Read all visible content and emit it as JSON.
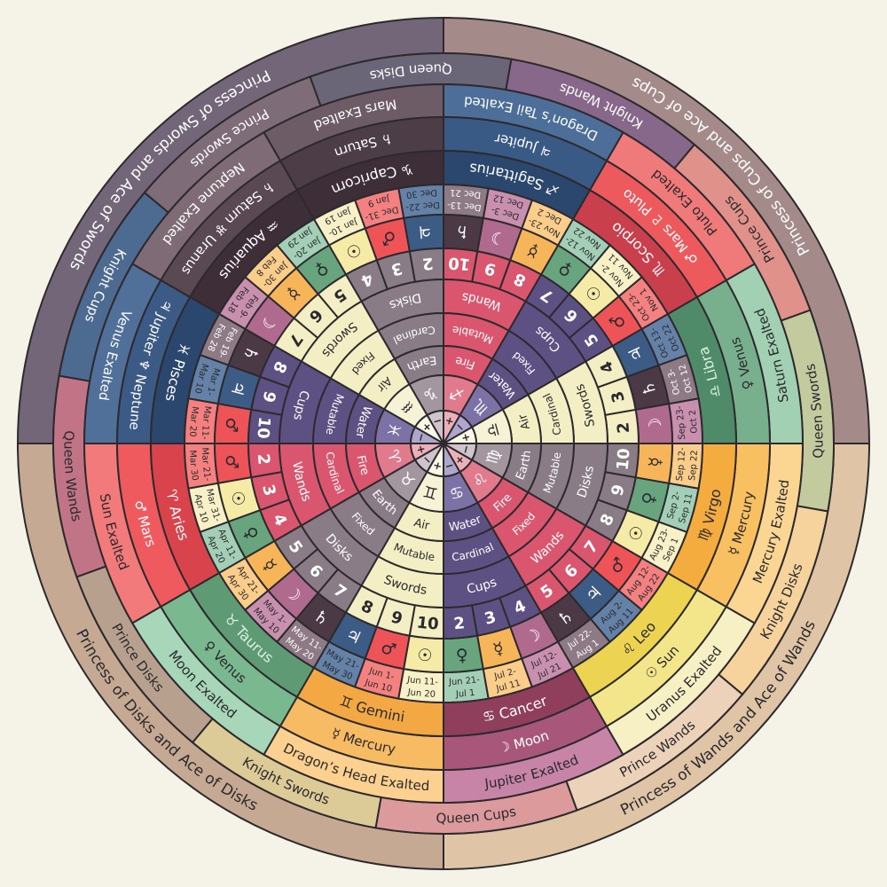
{
  "elements": {
    "Fire": {
      "color": "#d9566e",
      "inner": "#e07a8c",
      "center": "#eeb0b8",
      "text": "#ffffff",
      "polarity": "+"
    },
    "Earth": {
      "color": "#8a7c86",
      "inner": "#a3969f",
      "center": "#cfc4cc",
      "text": "#ffffff",
      "polarity": "−"
    },
    "Air": {
      "color": "#f3eec4",
      "inner": "#f6f2d6",
      "center": "#fbf8e8",
      "text": "#2a2a2e",
      "polarity": "+"
    },
    "Water": {
      "color": "#5d5183",
      "inner": "#7d72a6",
      "center": "#aea6cc",
      "text": "#ffffff",
      "polarity": "−"
    }
  },
  "planets": {
    "Mars": {
      "glyph": "♂",
      "color": "#ee5457",
      "light": "#f48080",
      "text": "#2a2a2e"
    },
    "Sun": {
      "glyph": "☉",
      "color": "#f6eba6",
      "light": "#f8f1c8",
      "text": "#2a2a2e"
    },
    "Venus": {
      "glyph": "♀",
      "color": "#68a57f",
      "light": "#a3cfb6",
      "text": "#2a2a2e"
    },
    "Mercury": {
      "glyph": "☿",
      "color": "#f7b55a",
      "light": "#fbcd8a",
      "text": "#2a2a2e"
    },
    "Moon": {
      "glyph": "☽",
      "color": "#b06a8e",
      "light": "#c98fae",
      "text": "#ffffff"
    },
    "Saturn": {
      "glyph": "♄",
      "color": "#4b3a45",
      "light": "#8d7a84",
      "text": "#ffffff"
    },
    "Jupiter": {
      "glyph": "♃",
      "color": "#3d5c85",
      "light": "#6482a8",
      "text": "#ffffff"
    }
  },
  "signs": [
    {
      "name": "♈ Aries",
      "glyph": "♈",
      "ruler": "♂ Mars",
      "exalted": "Sun Exalted",
      "element": "Fire",
      "modality": "Cardinal",
      "suit": "Wands",
      "numbers": [
        "2",
        "3",
        "4"
      ],
      "decans": [
        {
          "planet": "Mars",
          "dates": [
            "Mar 21-",
            "Mar 30"
          ]
        },
        {
          "planet": "Sun",
          "dates": [
            "Mar 31-",
            "Apr 10"
          ]
        },
        {
          "planet": "Venus",
          "dates": [
            "Apr 11-",
            "Apr 20"
          ]
        }
      ],
      "colors": [
        "#d9434c",
        "#ef5a5e",
        "#f27a7a"
      ],
      "text": [
        "#ffffff",
        "#ffffff",
        "#2a2a2e"
      ]
    },
    {
      "name": "♉ Taurus",
      "glyph": "♉",
      "ruler": "♀ Venus",
      "exalted": "Moon Exalted",
      "element": "Earth",
      "modality": "Fixed",
      "suit": "Disks",
      "numbers": [
        "5",
        "6",
        "7"
      ],
      "decans": [
        {
          "planet": "Mercury",
          "dates": [
            "Apr 21-",
            "Apr 30"
          ]
        },
        {
          "planet": "Moon",
          "dates": [
            "May 1-",
            "May 10"
          ]
        },
        {
          "planet": "Saturn",
          "dates": [
            "May 11-",
            "May 20"
          ]
        }
      ],
      "colors": [
        "#5e9a74",
        "#7ab88f",
        "#a7d6b9"
      ],
      "text": [
        "#d8f2e2",
        "#2a2a2e",
        "#2a2a2e"
      ]
    },
    {
      "name": "♊ Gemini",
      "glyph": "♊",
      "ruler": "☿ Mercury",
      "exalted": "Dragon’s Head Exalted",
      "element": "Air",
      "modality": "Mutable",
      "suit": "Swords",
      "numbers": [
        "8",
        "9",
        "10"
      ],
      "decans": [
        {
          "planet": "Jupiter",
          "dates": [
            "May 21-",
            "May 30"
          ]
        },
        {
          "planet": "Mars",
          "dates": [
            "Jun 1-",
            "Jun 10"
          ]
        },
        {
          "planet": "Sun",
          "dates": [
            "Jun 11-",
            "Jun 20"
          ]
        }
      ],
      "colors": [
        "#f3a844",
        "#f7bb63",
        "#fcd08e"
      ],
      "text": [
        "#2a2a2e",
        "#2a2a2e",
        "#2a2a2e"
      ]
    },
    {
      "name": "♋ Cancer",
      "glyph": "♋",
      "ruler": "☽ Moon",
      "exalted": "Jupiter Exalted",
      "element": "Water",
      "modality": "Cardinal",
      "suit": "Cups",
      "numbers": [
        "2",
        "3",
        "4"
      ],
      "decans": [
        {
          "planet": "Venus",
          "dates": [
            "Jun 21-",
            "Jul 1"
          ]
        },
        {
          "planet": "Mercury",
          "dates": [
            "Jul 2-",
            "Jul 11"
          ]
        },
        {
          "planet": "Moon",
          "dates": [
            "Jul 12-",
            "Jul 21"
          ]
        }
      ],
      "colors": [
        "#8f3f5c",
        "#a8577a",
        "#c884a6"
      ],
      "text": [
        "#ffffff",
        "#ffffff",
        "#2a2a2e"
      ]
    },
    {
      "name": "♌ Leo",
      "glyph": "♌",
      "ruler": "☉ Sun",
      "exalted": "Uranus Exalted",
      "element": "Fire",
      "modality": "Fixed",
      "suit": "Wands",
      "numbers": [
        "5",
        "6",
        "7"
      ],
      "decans": [
        {
          "planet": "Saturn",
          "dates": [
            "Jul 22-",
            "Aug 1"
          ]
        },
        {
          "planet": "Jupiter",
          "dates": [
            "Aug 2-",
            "Aug 11"
          ]
        },
        {
          "planet": "Mars",
          "dates": [
            "Aug 12-",
            "Aug 22"
          ]
        }
      ],
      "colors": [
        "#ecd452",
        "#f3e68a",
        "#f7f0c4"
      ],
      "text": [
        "#2a2a2e",
        "#2a2a2e",
        "#2a2a2e"
      ]
    },
    {
      "name": "♍ Virgo",
      "glyph": "♍",
      "ruler": "☿ Mercury",
      "exalted": "Mercury Exalted",
      "element": "Earth",
      "modality": "Mutable",
      "suit": "Disks",
      "numbers": [
        "8",
        "9",
        "10"
      ],
      "decans": [
        {
          "planet": "Sun",
          "dates": [
            "Aug 23-",
            "Sep 1"
          ]
        },
        {
          "planet": "Venus",
          "dates": [
            "Sep 2-",
            "Sep 11"
          ]
        },
        {
          "planet": "Mercury",
          "dates": [
            "Sep 12-",
            "Sep 22"
          ]
        }
      ],
      "colors": [
        "#f5ac3e",
        "#f8c060",
        "#fbd592"
      ],
      "text": [
        "#2a2a2e",
        "#2a2a2e",
        "#2a2a2e"
      ]
    },
    {
      "name": "♎ Libra",
      "glyph": "♎",
      "ruler": "♀ Venus",
      "exalted": "Saturn Exalted",
      "element": "Air",
      "modality": "Cardinal",
      "suit": "Swords",
      "numbers": [
        "2",
        "3",
        "4"
      ],
      "decans": [
        {
          "planet": "Moon",
          "dates": [
            "Sep 23-",
            "Oct 2"
          ]
        },
        {
          "planet": "Saturn",
          "dates": [
            "Oct 3-",
            "Oct 12"
          ]
        },
        {
          "planet": "Jupiter",
          "dates": [
            "Oct 13-",
            "Oct 22"
          ]
        }
      ],
      "colors": [
        "#4f8b68",
        "#78b08e",
        "#a2d0b3"
      ],
      "text": [
        "#d8f2e2",
        "#2a2a2e",
        "#2a2a2e"
      ]
    },
    {
      "name": "♏ Scorpio",
      "glyph": "♏",
      "ruler": "♂ Mars ♇ Pluto",
      "exalted": "Pluto Exalted",
      "element": "Water",
      "modality": "Fixed",
      "suit": "Cups",
      "numbers": [
        "5",
        "6",
        "7"
      ],
      "decans": [
        {
          "planet": "Mars",
          "dates": [
            "Oct 23-",
            "Nov 1"
          ]
        },
        {
          "planet": "Sun",
          "dates": [
            "Nov 2-",
            "Nov 11"
          ]
        },
        {
          "planet": "Venus",
          "dates": [
            "Nov 12-",
            "Nov 22"
          ]
        }
      ],
      "colors": [
        "#c9404c",
        "#ec5a5e",
        "#f07a7a"
      ],
      "text": [
        "#ffffff",
        "#ffffff",
        "#2a2a2e"
      ]
    },
    {
      "name": "♐ Sagittarius",
      "glyph": "♐",
      "ruler": "♃ Jupiter",
      "exalted": "Dragon’s Tail Exalted",
      "element": "Fire",
      "modality": "Mutable",
      "suit": "Wands",
      "numbers": [
        "8",
        "9",
        "10"
      ],
      "decans": [
        {
          "planet": "Mercury",
          "dates": [
            "Nov 23-",
            "Dec 2"
          ]
        },
        {
          "planet": "Moon",
          "dates": [
            "Dec 3-",
            "Dec 12"
          ]
        },
        {
          "planet": "Saturn",
          "dates": [
            "Dec 13-",
            "Dec 21"
          ]
        }
      ],
      "colors": [
        "#2c476e",
        "#3a5a86",
        "#4d6e98"
      ],
      "text": [
        "#ffffff",
        "#ffffff",
        "#ffffff"
      ]
    },
    {
      "name": "♑ Capricorn",
      "glyph": "♑",
      "ruler": "♄ Saturn",
      "exalted": "Mars Exalted",
      "element": "Earth",
      "modality": "Cardinal",
      "suit": "Disks",
      "numbers": [
        "2",
        "3",
        "4"
      ],
      "decans": [
        {
          "planet": "Jupiter",
          "dates": [
            "Dec 22-",
            "Dec 30"
          ]
        },
        {
          "planet": "Mars",
          "dates": [
            "Dec 31-",
            "Jan 9"
          ]
        },
        {
          "planet": "Sun",
          "dates": [
            "Jan 10-",
            "Jan 19"
          ]
        }
      ],
      "colors": [
        "#3e2e38",
        "#4d3d47",
        "#6d5c66"
      ],
      "text": [
        "#ffffff",
        "#ffffff",
        "#ffffff"
      ]
    },
    {
      "name": "♒ Aquarius",
      "glyph": "♒",
      "ruler": "♄ Saturn ♅ Uranus",
      "exalted": "Neptune Exalted",
      "element": "Air",
      "modality": "Fixed",
      "suit": "Swords",
      "numbers": [
        "5",
        "6",
        "7"
      ],
      "decans": [
        {
          "planet": "Venus",
          "dates": [
            "Jan 20-",
            "Jan 29"
          ]
        },
        {
          "planet": "Mercury",
          "dates": [
            "Jan 30-",
            "Feb 8"
          ]
        },
        {
          "planet": "Moon",
          "dates": [
            "Feb 9-",
            "Feb 18"
          ]
        }
      ],
      "colors": [
        "#3e2e38",
        "#5a4852",
        "#7e6b75"
      ],
      "text": [
        "#ffffff",
        "#ffffff",
        "#ffffff"
      ]
    },
    {
      "name": "♓ Pisces",
      "glyph": "♓",
      "ruler": "♃ Jupiter ♆ Neptune",
      "exalted": "Venus Exalted",
      "element": "Water",
      "modality": "Mutable",
      "suit": "Cups",
      "numbers": [
        "8",
        "9",
        "10"
      ],
      "decans": [
        {
          "planet": "Saturn",
          "dates": [
            "Feb 19-",
            "Feb 28"
          ]
        },
        {
          "planet": "Jupiter",
          "dates": [
            "Mar 1-",
            "Mar 10"
          ]
        },
        {
          "planet": "Mars",
          "dates": [
            "Mar 11-",
            "Mar 20"
          ]
        }
      ],
      "colors": [
        "#2c476e",
        "#3b5a86",
        "#50709a"
      ],
      "text": [
        "#ffffff",
        "#ffffff",
        "#ffffff"
      ]
    }
  ],
  "courts": [
    {
      "label": "Queen Wands",
      "color": "#c07485",
      "text": "#2a2a2e"
    },
    {
      "label": "Prince Disks",
      "color": "#b8a08f",
      "text": "#2a2a2e"
    },
    {
      "label": "Knight Swords",
      "color": "#dccb96",
      "text": "#2a2a2e"
    },
    {
      "label": "Queen Cups",
      "color": "#dc9a9c",
      "text": "#2a2a2e"
    },
    {
      "label": "Prince Wands",
      "color": "#ecd2b8",
      "text": "#2a2a2e"
    },
    {
      "label": "Knight Disks",
      "color": "#f6d39c",
      "text": "#2a2a2e"
    },
    {
      "label": "Queen Swords",
      "color": "#c3cb9e",
      "text": "#2a2a2e"
    },
    {
      "label": "Prince Cups",
      "color": "#e0918a",
      "text": "#2a2a2e"
    },
    {
      "label": "Knight Wands",
      "color": "#87688a",
      "text": "#ffffff"
    },
    {
      "label": "Queen Disks",
      "color": "#6b6578",
      "text": "#ffffff"
    },
    {
      "label": "Prince Swords",
      "color": "#7e6c78",
      "text": "#ffffff"
    },
    {
      "label": "Knight Cups",
      "color": "#4d6a90",
      "text": "#ffffff"
    }
  ],
  "princesses": [
    {
      "label": "Princess of Disks and Ace of Disks",
      "color": "#c5a992",
      "text": "#2a2a2e"
    },
    {
      "label": "Princess of Wands and Ace of Wands",
      "color": "#e0c4a6",
      "text": "#2a2a2e"
    },
    {
      "label": "Princess of Cups and Ace of Cups",
      "color": "#a58a8a",
      "text": "#ffffff"
    },
    {
      "label": "Princess of Swords and Ace of Swords",
      "color": "#736679",
      "text": "#ffffff"
    }
  ],
  "style": {
    "background": "#f5f2e8",
    "stroke": "#2d2a2e"
  }
}
